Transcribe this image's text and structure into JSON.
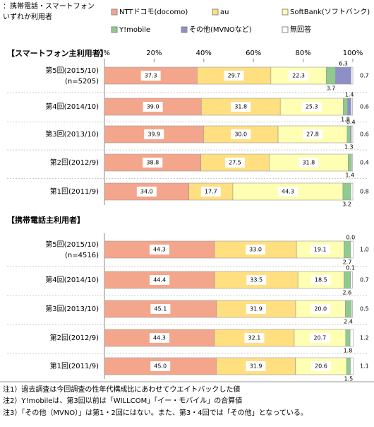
{
  "header": [
    "：携帯電話・スマートフォン",
    "いずれか利用者"
  ],
  "chart_data": [
    {
      "type": "bar",
      "orientation": "horizontal",
      "stacked": true,
      "legend": "top",
      "title": "【スマートフォン主利用者】",
      "categories": [
        "第5回(2015/10)",
        "第4回(2014/10)",
        "第3回(2013/10)",
        "第2回(2012/9)",
        "第1回(2011/9)"
      ],
      "category_notes": [
        "(n=5205)",
        null,
        null,
        null,
        null
      ],
      "xlim": [
        0,
        100
      ],
      "xticks": [
        {
          "value": 0,
          "label": "0%"
        },
        {
          "value": 20,
          "label": "20%"
        },
        {
          "value": 40,
          "label": "40%"
        },
        {
          "value": 60,
          "label": "60%"
        },
        {
          "value": 80,
          "label": "80%"
        },
        {
          "value": 100,
          "label": "100%"
        }
      ],
      "series": [
        {
          "name": "NTTドコモ(docomo)",
          "color": "#f4a68c",
          "values": [
            37.3,
            39.0,
            39.9,
            38.8,
            34.0
          ],
          "value_labels": [
            "37.3",
            "39.0",
            "39.9",
            "38.8",
            "34.0"
          ]
        },
        {
          "name": "au",
          "color": "#ffdf80",
          "values": [
            29.7,
            31.8,
            30.0,
            27.5,
            17.7
          ],
          "value_labels": [
            "29.7",
            "31.8",
            "30.0",
            "27.5",
            "17.7"
          ]
        },
        {
          "name": "SoftBank(ソフトバンク)",
          "color": "#ffffb3",
          "values": [
            22.3,
            25.3,
            27.8,
            31.8,
            44.3
          ],
          "value_labels": [
            "22.3",
            "25.3",
            "27.8",
            "31.8",
            "44.3"
          ]
        },
        {
          "name": "Y!mobile",
          "color": "#8fca8f",
          "values": [
            3.7,
            1.8,
            1.3,
            1.4,
            3.2
          ],
          "value_labels": [
            "3.7",
            "1.8",
            "1.3",
            "1.4",
            "3.2"
          ]
        },
        {
          "name": "その他(MVNOなど)",
          "color": "#8f8fc8",
          "values": [
            6.3,
            1.4,
            0.4,
            null,
            null
          ],
          "value_labels": [
            "6.3",
            "1.4",
            "0.4",
            null,
            null
          ]
        },
        {
          "name": "無回答",
          "color": "#ffffff",
          "values": [
            0.7,
            0.6,
            0.6,
            0.4,
            0.8
          ],
          "value_labels": [
            "0.7",
            "0.6",
            "0.6",
            "0.4",
            "0.8"
          ]
        }
      ]
    },
    {
      "type": "bar",
      "orientation": "horizontal",
      "stacked": true,
      "title": "【携帯電話主利用者】",
      "categories": [
        "第5回(2015/10)",
        "第4回(2014/10)",
        "第3回(2013/10)",
        "第2回(2012/9)",
        "第1回(2011/9)"
      ],
      "category_notes": [
        "(n=4516)",
        null,
        null,
        null,
        null
      ],
      "xlim": [
        0,
        100
      ],
      "series": [
        {
          "color": "#f4a68c",
          "values": [
            44.3,
            44.4,
            45.1,
            44.3,
            45.0
          ],
          "value_labels": [
            "44.3",
            "44.4",
            "45.1",
            "44.3",
            "45.0"
          ]
        },
        {
          "color": "#ffdf80",
          "values": [
            33.0,
            33.5,
            31.9,
            32.1,
            31.9
          ],
          "value_labels": [
            "33.0",
            "33.5",
            "31.9",
            "32.1",
            "31.9"
          ]
        },
        {
          "color": "#ffffb3",
          "values": [
            19.1,
            18.5,
            20.0,
            20.7,
            20.6
          ],
          "value_labels": [
            "19.1",
            "18.5",
            "20.0",
            "20.7",
            "20.6"
          ]
        },
        {
          "color": "#8fca8f",
          "values": [
            2.7,
            2.6,
            2.4,
            1.8,
            1.5
          ],
          "value_labels": [
            "2.7",
            "2.6",
            "2.4",
            "1.8",
            "1.5"
          ]
        },
        {
          "color": "#8f8fc8",
          "values": [
            0.0,
            0.1,
            null,
            null,
            null
          ],
          "value_labels": [
            "0.0",
            "0.1",
            null,
            null,
            null
          ]
        },
        {
          "color": "#ffffff",
          "values": [
            1.0,
            0.7,
            0.5,
            1.2,
            1.1
          ],
          "value_labels": [
            "1.0",
            "0.7",
            "0.5",
            "1.2",
            "1.1"
          ]
        }
      ]
    }
  ],
  "notes": [
    "注1）過去調査は今回調査の性年代構成比にあわせてウエイトバックした値",
    "注2）Y!mobileは、第3回以前は「WILLCOM」「イー・モバイル」の合算値",
    "注3）「その他（MVNO）」は第1・2回にはない。また、第3・4回では「その他」となっている。"
  ]
}
